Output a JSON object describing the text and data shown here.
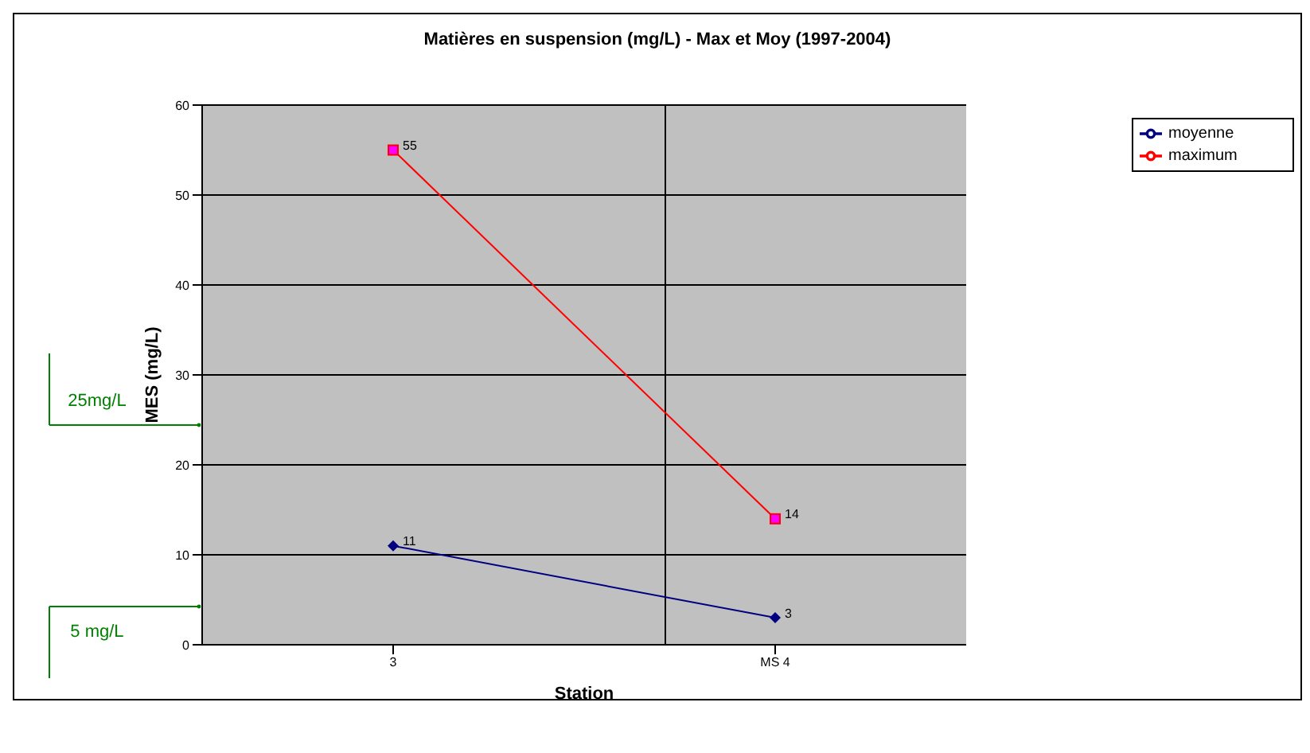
{
  "chart_data": {
    "type": "line",
    "title": "Matières en suspension (mg/L) - Max et Moy (1997-2004)",
    "xlabel": "Station",
    "ylabel": "MES (mg/L)",
    "categories": [
      "3",
      "MS 4"
    ],
    "series": [
      {
        "name": "moyenne",
        "color": "#000080",
        "marker": "diamond",
        "values": [
          11,
          3
        ]
      },
      {
        "name": "maximum",
        "color": "#ff0000",
        "marker": "square",
        "values": [
          55,
          14
        ]
      }
    ],
    "ylim": [
      0,
      60
    ],
    "yticks": [
      0,
      10,
      20,
      30,
      40,
      50,
      60
    ],
    "grid": true,
    "legend": "right",
    "data_labels": true,
    "annotations": [
      "25mg/L",
      "5 mg/L"
    ]
  }
}
